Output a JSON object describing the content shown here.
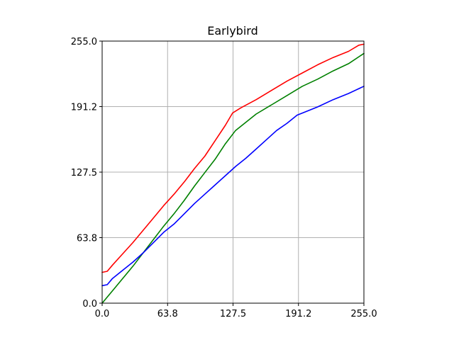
{
  "chart_data": {
    "type": "line",
    "title": "Earlybird",
    "xlabel": "",
    "ylabel": "",
    "xlim": [
      0,
      255
    ],
    "ylim": [
      0,
      255
    ],
    "xticks": [
      "0.0",
      "63.8",
      "127.5",
      "191.2",
      "255.0"
    ],
    "yticks": [
      "0.0",
      "63.8",
      "127.5",
      "191.2",
      "255.0"
    ],
    "tick_values": [
      0,
      63.75,
      127.5,
      191.25,
      255
    ],
    "grid": true,
    "series": [
      {
        "color": "#ff0000",
        "x": [
          0,
          5,
          10,
          20,
          30,
          40,
          50,
          60,
          70,
          80,
          90,
          100,
          110,
          120,
          127,
          135,
          150,
          165,
          180,
          195,
          210,
          225,
          240,
          250,
          255
        ],
        "y": [
          30,
          31,
          37,
          48,
          59,
          71,
          83,
          95,
          106,
          118,
          131,
          143,
          158,
          173,
          185,
          190,
          198,
          207,
          216,
          224,
          232,
          239,
          245,
          251,
          252
        ]
      },
      {
        "color": "#008000",
        "x": [
          0,
          10,
          20,
          30,
          40,
          50,
          60,
          70,
          80,
          90,
          100,
          110,
          120,
          130,
          140,
          150,
          165,
          180,
          195,
          210,
          225,
          240,
          255
        ],
        "y": [
          0,
          12,
          24,
          36,
          49,
          62,
          75,
          87,
          100,
          114,
          127,
          140,
          155,
          168,
          176,
          184,
          193,
          202,
          211,
          218,
          226,
          233,
          243
        ]
      },
      {
        "color": "#0000ff",
        "x": [
          0,
          5,
          10,
          20,
          30,
          40,
          50,
          60,
          70,
          80,
          90,
          100,
          110,
          120,
          130,
          140,
          150,
          160,
          170,
          180,
          190,
          195,
          210,
          225,
          240,
          255
        ],
        "y": [
          17,
          18,
          24,
          32,
          40,
          49,
          59,
          69,
          77,
          87,
          97,
          106,
          115,
          124,
          133,
          141,
          150,
          159,
          168,
          175,
          183,
          185,
          191,
          198,
          204,
          211
        ]
      }
    ]
  }
}
